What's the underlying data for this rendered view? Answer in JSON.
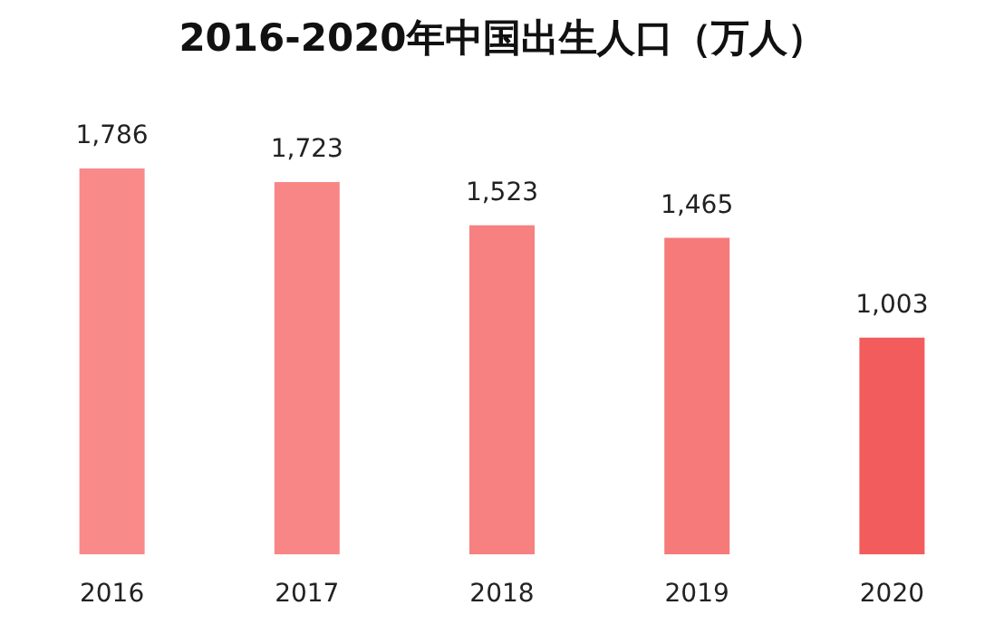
{
  "chart_data": {
    "type": "bar",
    "title": "2016-2020年中国出生人口（万人）",
    "categories": [
      "2016",
      "2017",
      "2018",
      "2019",
      "2020"
    ],
    "values": [
      1786,
      1723,
      1523,
      1465,
      1003
    ],
    "colors": [
      "#f98a8a",
      "#f88686",
      "#f78080",
      "#f67a7a",
      "#f25c5c"
    ],
    "value_labels": [
      "1,786",
      "1,723",
      "1,523",
      "1,465",
      "1,003"
    ]
  }
}
